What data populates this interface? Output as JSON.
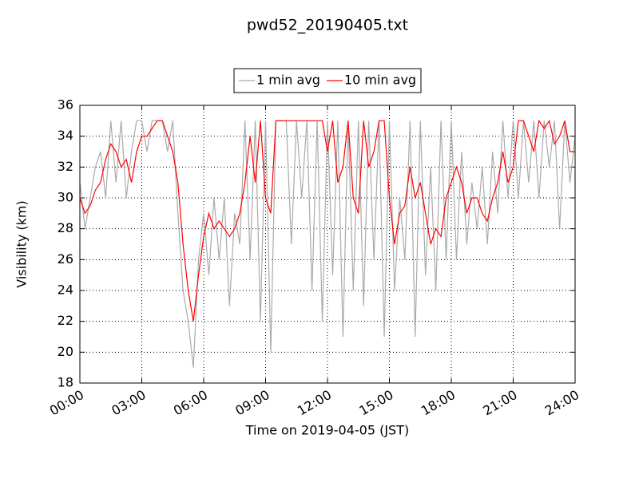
{
  "chart_data": {
    "type": "line",
    "title": "pwd52_20190405.txt",
    "xlabel": "Time on 2019-04-05 (JST)",
    "ylabel": "Visibility (km)",
    "x": [
      0,
      15,
      30,
      45,
      60,
      75,
      90,
      105,
      120,
      135,
      150,
      165,
      180,
      195,
      210,
      225,
      240,
      255,
      270,
      285,
      300,
      315,
      330,
      345,
      360,
      375,
      390,
      405,
      420,
      435,
      450,
      465,
      480,
      495,
      510,
      525,
      540,
      555,
      570,
      585,
      600,
      615,
      630,
      645,
      660,
      675,
      690,
      705,
      720,
      735,
      750,
      765,
      780,
      795,
      810,
      825,
      840,
      855,
      870,
      885,
      900,
      915,
      930,
      945,
      960,
      975,
      990,
      1005,
      1020,
      1035,
      1050,
      1065,
      1080,
      1095,
      1110,
      1125,
      1140,
      1155,
      1170,
      1185,
      1200,
      1215,
      1230,
      1245,
      1260,
      1275,
      1290,
      1305,
      1320,
      1335,
      1350,
      1365,
      1380,
      1395,
      1410,
      1425,
      1440
    ],
    "series": [
      {
        "name": "1 min avg",
        "color": "#aaaaaa",
        "values": [
          31,
          28,
          30,
          32,
          33,
          30,
          35,
          31,
          35,
          30,
          33,
          35,
          35,
          33,
          35,
          35,
          35,
          33,
          35,
          29,
          24,
          22,
          19,
          26,
          29,
          25,
          30,
          26,
          30,
          23,
          29,
          27,
          35,
          26,
          35,
          22,
          35,
          20,
          35,
          35,
          35,
          27,
          35,
          30,
          35,
          24,
          35,
          22,
          35,
          25,
          35,
          21,
          35,
          24,
          35,
          23,
          35,
          26,
          35,
          21,
          35,
          24,
          30,
          26,
          35,
          21,
          35,
          25,
          32,
          24,
          35,
          26,
          35,
          26,
          33,
          27,
          31,
          28,
          32,
          27,
          33,
          29,
          35,
          30,
          35,
          30,
          35,
          31,
          35,
          30,
          35,
          32,
          35,
          28,
          35,
          31,
          34
        ]
      },
      {
        "name": "10 min avg",
        "color": "#ff0000",
        "values": [
          30,
          29,
          29.5,
          30.5,
          31,
          32.5,
          33.5,
          33,
          32,
          32.5,
          31,
          33,
          34,
          34,
          34.5,
          35,
          35,
          34,
          33,
          31,
          27,
          24,
          22,
          25,
          27.5,
          29,
          28,
          28.5,
          28,
          27.5,
          28,
          29,
          31,
          34,
          31,
          35,
          30,
          29,
          35,
          35,
          35,
          35,
          35,
          35,
          35,
          35,
          35,
          35,
          33,
          35,
          31,
          32,
          35,
          30,
          29,
          35,
          32,
          33,
          35,
          35,
          30,
          27,
          29,
          29.5,
          32,
          30,
          31,
          29,
          27,
          28,
          27.5,
          30,
          31,
          32,
          31,
          29,
          30,
          30,
          29,
          28.5,
          30,
          31,
          33,
          31,
          32,
          35,
          35,
          34,
          33,
          35,
          34.5,
          35,
          33.5,
          34,
          35,
          33,
          33
        ]
      }
    ],
    "xlim": [
      0,
      1440
    ],
    "xticks": [
      {
        "value": 0,
        "label": "00:00"
      },
      {
        "value": 180,
        "label": "03:00"
      },
      {
        "value": 360,
        "label": "06:00"
      },
      {
        "value": 540,
        "label": "09:00"
      },
      {
        "value": 720,
        "label": "12:00"
      },
      {
        "value": 900,
        "label": "15:00"
      },
      {
        "value": 1080,
        "label": "18:00"
      },
      {
        "value": 1260,
        "label": "21:00"
      },
      {
        "value": 1440,
        "label": "24:00"
      }
    ],
    "ylim": [
      18,
      36
    ],
    "yticks": [
      18,
      20,
      22,
      24,
      26,
      28,
      30,
      32,
      34,
      36
    ],
    "grid": true,
    "legend": "top"
  }
}
